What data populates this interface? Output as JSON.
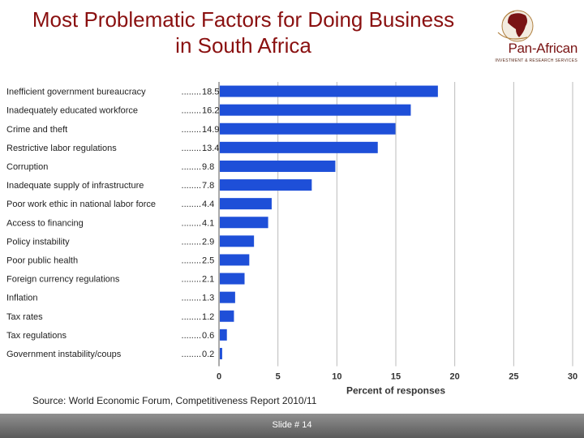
{
  "slide": {
    "title_lines": [
      "Most Problematic Factors for Doing Business",
      "in South Africa"
    ],
    "logo": {
      "name": "Pan-African",
      "tagline": "INVESTMENT & RESEARCH SERVICES"
    },
    "source": "Source: World Economic Forum, Competitiveness Report 2010/11",
    "footer": "Slide # 14",
    "colors": {
      "title": "#8a1010",
      "bar": "#1e4fd8",
      "footer": "#6e6e6e"
    }
  },
  "chart_data": {
    "type": "bar",
    "orientation": "horizontal",
    "categories": [
      "Inefficient government bureaucracy",
      "Inadequately educated workforce",
      "Crime and theft",
      "Restrictive labor regulations",
      "Corruption",
      "Inadequate supply of infrastructure",
      "Poor work ethic in national labor force",
      "Access to financing",
      "Policy instability",
      "Poor public health",
      "Foreign currency regulations",
      "Inflation",
      "Tax rates",
      "Tax regulations",
      "Government instability/coups"
    ],
    "values": [
      18.5,
      16.2,
      14.9,
      13.4,
      9.8,
      7.8,
      4.4,
      4.1,
      2.9,
      2.5,
      2.1,
      1.3,
      1.2,
      0.6,
      0.2
    ],
    "value_labels": [
      "18.5",
      "16.2",
      "14.9",
      "13.4",
      "9.8",
      "7.8",
      "4.4",
      "4.1",
      "2.9",
      "2.5",
      "2.1",
      "1.3",
      "1.2",
      "0.6",
      "0.2"
    ],
    "xlim": [
      0,
      30
    ],
    "xticks": [
      0,
      5,
      10,
      15,
      20,
      25,
      30
    ],
    "xtick_labels": [
      "0",
      "5",
      "10",
      "15",
      "20",
      "25",
      "30"
    ],
    "xlabel": "Percent of responses",
    "grid": true
  }
}
